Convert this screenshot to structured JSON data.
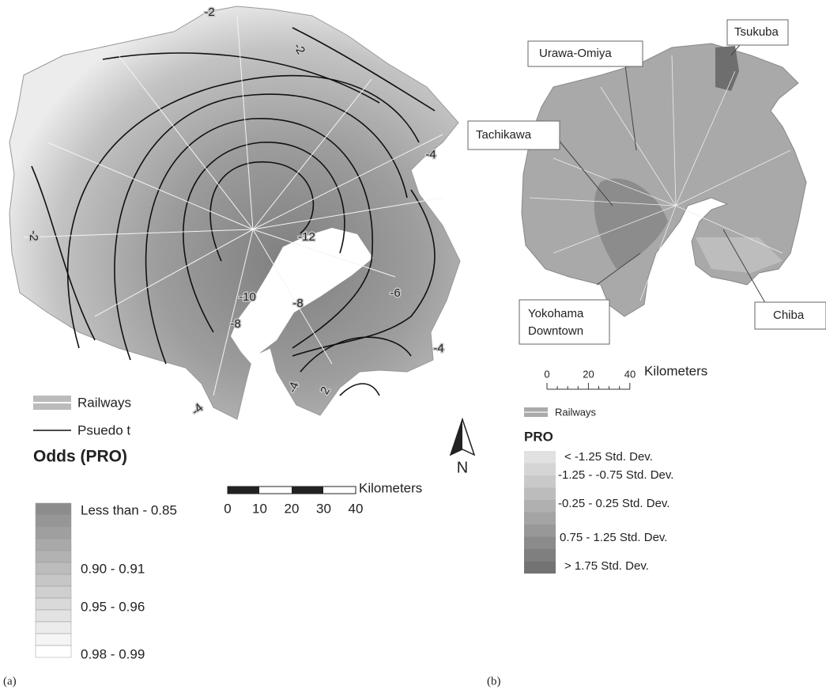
{
  "panel_a": {
    "contour_labels": [
      -2,
      -2,
      -4,
      -2,
      -12,
      -10,
      -8,
      -8,
      -6,
      -4,
      -4,
      2,
      -4
    ],
    "legend": {
      "railways": "Railways",
      "pseudo_t": "Psuedo t",
      "title": "Odds (PRO)",
      "classes": [
        "Less than - 0.85",
        "0.90 - 0.91",
        "0.95 - 0.96",
        "0.98 - 0.99"
      ]
    },
    "scale": {
      "unit": "Kilometers",
      "ticks": [
        0,
        10,
        20,
        30,
        40
      ]
    },
    "north": "N",
    "caption": "(a)"
  },
  "panel_b": {
    "places": {
      "urawa": "Urawa-Omiya",
      "tsukuba": "Tsukuba",
      "tachikawa": "Tachikawa",
      "yokohama": [
        "Yokohama",
        "Downtown"
      ],
      "chiba": "Chiba"
    },
    "scale": {
      "ticks": [
        0,
        20,
        40
      ],
      "unit": "Kilometers"
    },
    "legend": {
      "railways": "Railways",
      "title": "PRO",
      "classes": [
        "< -1.25 Std. Dev.",
        "-1.25 - -0.75 Std. Dev.",
        "-0.25 - 0.25 Std. Dev.",
        "0.75 - 1.25 Std. Dev.",
        "> 1.75 Std. Dev."
      ]
    },
    "caption": "(b)"
  }
}
